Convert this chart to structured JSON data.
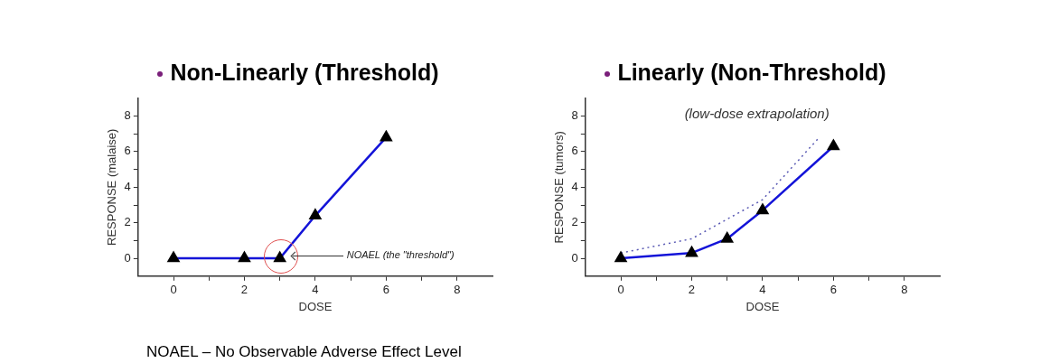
{
  "chart_data": [
    {
      "type": "line",
      "title": "Non-Linearly (Threshold)",
      "xlabel": "DOSE",
      "ylabel": "RESPONSE (malaise)",
      "xlim": [
        -1,
        9
      ],
      "ylim": [
        -1,
        9
      ],
      "xticks": [
        0,
        {
          "value": 1,
          "label": null
        },
        2,
        {
          "value": 3,
          "label": null
        },
        4,
        {
          "value": 5,
          "label": null
        },
        6,
        {
          "value": 7,
          "label": null
        },
        8
      ],
      "yticks": [
        0,
        {
          "value": 1,
          "label": null
        },
        2,
        {
          "value": 3,
          "label": null
        },
        4,
        {
          "value": 5,
          "label": null
        },
        6,
        {
          "value": 7,
          "label": null
        },
        8
      ],
      "x": [
        0,
        2,
        3,
        4,
        6
      ],
      "series": [
        {
          "color": "#1414d8",
          "values": [
            0,
            0,
            0,
            2.4,
            6.8
          ]
        }
      ],
      "marker": "triangle",
      "line_style": "solid",
      "grid": false,
      "legend": false,
      "annotations": [
        "NOAEL (the \"threshold\")",
        "NOAEL – No Observable Adverse Effect Level"
      ]
    },
    {
      "type": "line",
      "title": "Linearly (Non-Threshold)",
      "xlabel": "DOSE",
      "ylabel": "RESPONSE (tumors)",
      "xlim": [
        -1,
        9
      ],
      "ylim": [
        -1,
        9
      ],
      "xticks": [
        0,
        {
          "value": 1,
          "label": null
        },
        2,
        {
          "value": 3,
          "label": null
        },
        4,
        {
          "value": 5,
          "label": null
        },
        6,
        {
          "value": 7,
          "label": null
        },
        8
      ],
      "yticks": [
        0,
        {
          "value": 1,
          "label": null
        },
        2,
        {
          "value": 3,
          "label": null
        },
        4,
        {
          "value": 5,
          "label": null
        },
        6,
        {
          "value": 7,
          "label": null
        },
        8
      ],
      "x": [
        0,
        2,
        3,
        4,
        6
      ],
      "series": [
        {
          "color": "#1414d8",
          "values": [
            0,
            0.3,
            1.1,
            2.7,
            6.3
          ]
        },
        {
          "color": "#5a5ab4",
          "x": [
            0,
            2,
            4,
            5.6
          ],
          "values": [
            0.3,
            1.1,
            3.3,
            6.8
          ],
          "marker": "none",
          "line_style": "dotted"
        }
      ],
      "marker": "triangle",
      "line_style": "solid",
      "grid": false,
      "legend": false,
      "annotations": [
        "(low-dose extrapolation)"
      ]
    }
  ]
}
